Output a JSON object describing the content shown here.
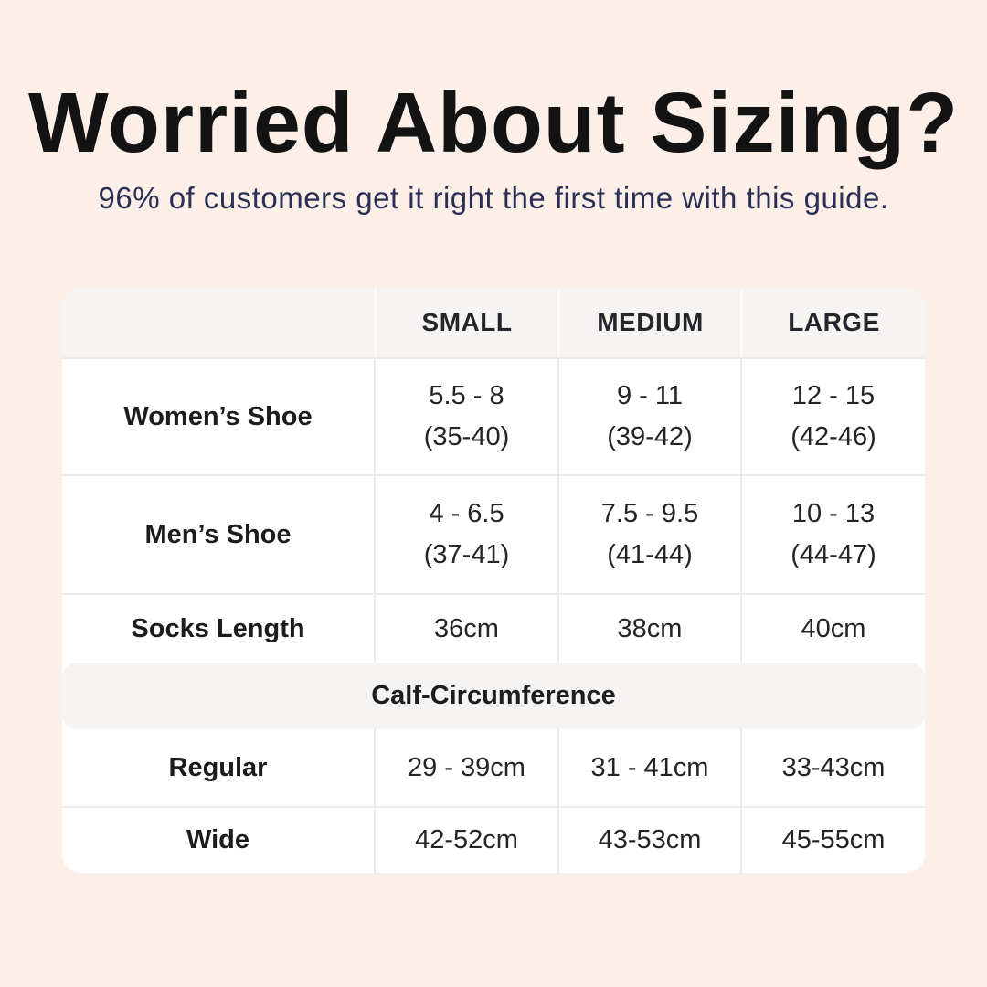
{
  "colors": {
    "background": "#FCEFE7",
    "card": "#FFFFFF",
    "band_gray": "#F5F4F2",
    "separator": "#EDEBE8",
    "title_text": "#131313",
    "subtitle_text": "#2A2F55"
  },
  "header": {
    "title": "Worried About Sizing?",
    "subtitle": "96% of customers get it right the first time with this guide."
  },
  "sizing_table": {
    "column_headers": [
      "SMALL",
      "MEDIUM",
      "LARGE"
    ],
    "rows": [
      {
        "label": "Women’s Shoe",
        "small": [
          "5.5 - 8",
          "(35-40)"
        ],
        "medium": [
          "9 - 11",
          "(39-42)"
        ],
        "large": [
          "12 - 15",
          "(42-46)"
        ]
      },
      {
        "label": "Men’s Shoe",
        "small": [
          "4 - 6.5",
          "(37-41)"
        ],
        "medium": [
          "7.5 - 9.5",
          "(41-44)"
        ],
        "large": [
          "10 - 13",
          "(44-47)"
        ]
      },
      {
        "label": "Socks Length",
        "small": "36cm",
        "medium": "38cm",
        "large": "40cm"
      }
    ],
    "calf_section": {
      "title": "Calf-Circumference",
      "rows": [
        {
          "label": "Regular",
          "small": "29 - 39cm",
          "medium": "31 - 41cm",
          "large": "33-43cm"
        },
        {
          "label": "Wide",
          "small": "42-52cm",
          "medium": "43-53cm",
          "large": "45-55cm"
        }
      ]
    }
  },
  "chart_data": {
    "type": "table",
    "title": "Worried About Sizing?",
    "subtitle": "96% of customers get it right the first time with this guide.",
    "columns": [
      "",
      "SMALL",
      "MEDIUM",
      "LARGE"
    ],
    "rows": [
      [
        "Women’s Shoe",
        "5.5 - 8 (35-40)",
        "9 - 11 (39-42)",
        "12 - 15 (42-46)"
      ],
      [
        "Men’s Shoe",
        "4 - 6.5 (37-41)",
        "7.5 - 9.5 (41-44)",
        "10 - 13 (44-47)"
      ],
      [
        "Socks Length",
        "36cm",
        "38cm",
        "40cm"
      ],
      [
        "Calf-Circumference",
        "",
        "",
        ""
      ],
      [
        "Regular",
        "29 - 39cm",
        "31 - 41cm",
        "33-43cm"
      ],
      [
        "Wide",
        "42-52cm",
        "43-53cm",
        "45-55cm"
      ]
    ]
  }
}
